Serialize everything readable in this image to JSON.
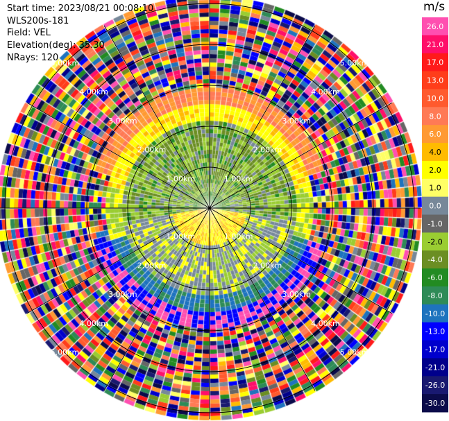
{
  "header": {
    "start_time": "Start time: 2023/08/21 00:08:10",
    "instrument": "WLS200s-181",
    "field": "Field: VEL",
    "elevation": "Elevation(deg): 35.30",
    "nrays": "NRays: 120"
  },
  "colorbar": {
    "unit": "m/s",
    "bins": [
      {
        "label": "26.0",
        "color": "#ff4fb0"
      },
      {
        "label": "21.0",
        "color": "#ff0f6a"
      },
      {
        "label": "17.0",
        "color": "#ff1a1a"
      },
      {
        "label": "13.0",
        "color": "#ff3d1a"
      },
      {
        "label": "10.0",
        "color": "#ff5a2e"
      },
      {
        "label": "8.0",
        "color": "#ff7a55"
      },
      {
        "label": "6.0",
        "color": "#ff9a33"
      },
      {
        "label": "4.0",
        "color": "#ffbb00"
      },
      {
        "label": "2.0",
        "color": "#ffff00"
      },
      {
        "label": "1.0",
        "color": "#ffff66"
      },
      {
        "label": "0.0",
        "color": "#778899"
      },
      {
        "label": "-1.0",
        "color": "#666666"
      },
      {
        "label": "-2.0",
        "color": "#9acd32"
      },
      {
        "label": "-4.0",
        "color": "#6b8e23"
      },
      {
        "label": "-6.0",
        "color": "#228b22"
      },
      {
        "label": "-8.0",
        "color": "#2e8b57"
      },
      {
        "label": "-10.0",
        "color": "#1e73be"
      },
      {
        "label": "-13.0",
        "color": "#0000ff"
      },
      {
        "label": "-17.0",
        "color": "#0000cd"
      },
      {
        "label": "-21.0",
        "color": "#00008b"
      },
      {
        "label": "-26.0",
        "color": "#191970"
      },
      {
        "label": "-30.0",
        "color": "#0b0b4a"
      }
    ]
  },
  "chart_data": {
    "type": "heatmap",
    "subtype": "polar PPI scan",
    "field": "VEL",
    "units": "m/s",
    "nrays": 120,
    "elevation_deg": 35.3,
    "range_rings": [
      "1.00km",
      "2.00km",
      "3.00km",
      "4.00km",
      "5.00km"
    ],
    "spokes": 12,
    "description_of_pattern": "inner region (~0-4 km) shows organized near-zero velocities: grey/green (-1 to -6 m/s) to north and yellow/orange (+1 to +6 m/s) to south; beyond ~4 km noisy random colors across full scale",
    "color_scale": [
      -30.0,
      -26.0,
      -21.0,
      -17.0,
      -13.0,
      -10.0,
      -8.0,
      -6.0,
      -4.0,
      -2.0,
      -1.0,
      0.0,
      1.0,
      2.0,
      4.0,
      6.0,
      8.0,
      10.0,
      13.0,
      17.0,
      21.0,
      26.0
    ]
  }
}
